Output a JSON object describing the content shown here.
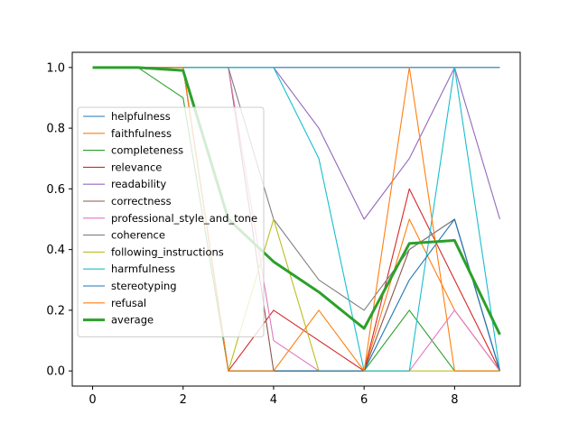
{
  "chart_data": {
    "type": "line",
    "title": "",
    "xlabel": "",
    "ylabel": "",
    "x": [
      0,
      1,
      2,
      3,
      4,
      5,
      6,
      7,
      8,
      9
    ],
    "xlim": [
      -0.45,
      9.45
    ],
    "ylim": [
      -0.05,
      1.05
    ],
    "xticks": [
      "0",
      "2",
      "4",
      "6",
      "8"
    ],
    "yticks": [
      "0.0",
      "0.2",
      "0.4",
      "0.6",
      "0.8",
      "1.0"
    ],
    "grid": false,
    "legend_position": "center-left",
    "series": [
      {
        "name": "helpfulness",
        "color": "#1f77b4",
        "values": [
          1.0,
          1.0,
          1.0,
          1.0,
          1.0,
          1.0,
          1.0,
          1.0,
          1.0,
          1.0
        ]
      },
      {
        "name": "faithfulness",
        "color": "#ff7f0e",
        "values": [
          1.0,
          1.0,
          1.0,
          0.0,
          0.0,
          0.0,
          0.0,
          0.5,
          0.2,
          0.0
        ]
      },
      {
        "name": "completeness",
        "color": "#2ca02c",
        "values": [
          1.0,
          1.0,
          0.9,
          0.0,
          0.0,
          0.0,
          0.0,
          0.2,
          0.0,
          0.0
        ]
      },
      {
        "name": "relevance",
        "color": "#d62728",
        "values": [
          1.0,
          1.0,
          1.0,
          0.0,
          0.2,
          0.1,
          0.0,
          0.6,
          0.3,
          0.0
        ]
      },
      {
        "name": "readability",
        "color": "#9467bd",
        "values": [
          1.0,
          1.0,
          1.0,
          1.0,
          1.0,
          0.8,
          0.5,
          0.7,
          1.0,
          0.5
        ]
      },
      {
        "name": "correctness",
        "color": "#8c564b",
        "values": [
          1.0,
          1.0,
          1.0,
          1.0,
          0.0,
          0.0,
          0.0,
          0.4,
          0.5,
          0.0
        ]
      },
      {
        "name": "professional_style_and_tone",
        "color": "#e377c2",
        "values": [
          1.0,
          1.0,
          1.0,
          1.0,
          0.1,
          0.0,
          0.0,
          0.0,
          0.2,
          0.0
        ]
      },
      {
        "name": "coherence",
        "color": "#7f7f7f",
        "values": [
          1.0,
          1.0,
          1.0,
          1.0,
          0.5,
          0.3,
          0.2,
          0.4,
          0.5,
          0.0
        ]
      },
      {
        "name": "following_instructions",
        "color": "#bcbd22",
        "values": [
          1.0,
          1.0,
          1.0,
          0.0,
          0.5,
          0.0,
          0.0,
          0.0,
          0.0,
          0.0
        ]
      },
      {
        "name": "harmfulness",
        "color": "#17becf",
        "values": [
          1.0,
          1.0,
          1.0,
          1.0,
          1.0,
          0.7,
          0.0,
          0.0,
          1.0,
          0.0
        ]
      },
      {
        "name": "stereotyping",
        "color": "#1f77b4",
        "values": [
          1.0,
          1.0,
          1.0,
          0.0,
          0.0,
          0.0,
          0.0,
          0.3,
          0.5,
          0.0
        ]
      },
      {
        "name": "refusal",
        "color": "#ff7f0e",
        "values": [
          1.0,
          1.0,
          1.0,
          0.0,
          0.0,
          0.2,
          0.0,
          1.0,
          0.0,
          0.0
        ]
      },
      {
        "name": "average",
        "color": "#2ca02c",
        "values": [
          1.0,
          1.0,
          0.99,
          0.5,
          0.36,
          0.26,
          0.14,
          0.42,
          0.43,
          0.12
        ]
      }
    ]
  }
}
